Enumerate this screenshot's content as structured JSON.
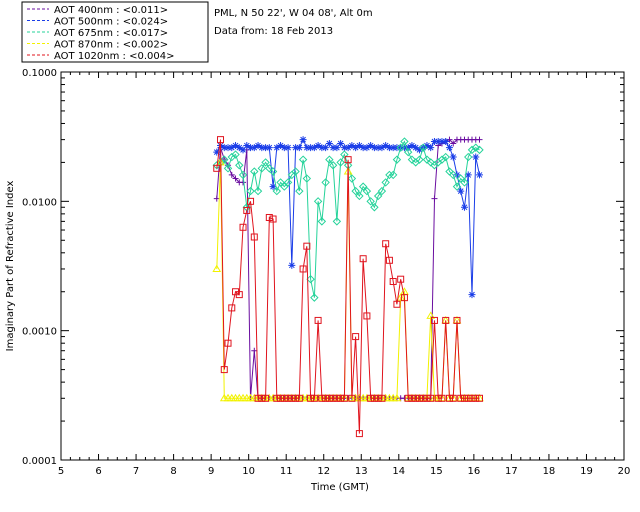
{
  "info": {
    "station": "PML, N 50 22', W 04 08', Alt 0m",
    "data_from": "Data from: 18 Feb 2013"
  },
  "legend": [
    {
      "label": "AOT  400nm : <0.011>",
      "color": "#6a0da0"
    },
    {
      "label": "AOT  500nm : <0.024>",
      "color": "#1a3de8"
    },
    {
      "label": "AOT  675nm : <0.017>",
      "color": "#25d39a"
    },
    {
      "label": "AOT  870nm : <0.002>",
      "color": "#f2f200"
    },
    {
      "label": "AOT 1020nm : <0.004>",
      "color": "#e0141e"
    }
  ],
  "chart_data": {
    "type": "line",
    "title": "",
    "xlabel": "Time (GMT)",
    "ylabel": "Imaginary Part of Refractive Index",
    "xlim": [
      5,
      20
    ],
    "ylim": [
      0.0001,
      0.1
    ],
    "yscale": "log",
    "xticks": [
      "5",
      "6",
      "7",
      "8",
      "9",
      "10",
      "11",
      "12",
      "13",
      "14",
      "15",
      "16",
      "17",
      "18",
      "19",
      "20"
    ],
    "yticks": [
      "0.1000",
      "0.0100",
      "0.0010",
      "0.0001"
    ],
    "grid": false,
    "series": [
      {
        "name": "AOT  400nm : <0.011>",
        "color": "#6a0da0",
        "marker": "plus",
        "x": [
          9.15,
          9.25,
          9.35,
          9.45,
          9.55,
          9.65,
          9.75,
          9.85,
          9.95,
          10.05,
          10.15,
          10.25,
          10.35,
          10.45,
          10.55,
          10.65,
          10.75,
          10.85,
          10.95,
          11.05,
          11.15,
          11.25,
          11.35,
          11.45,
          11.55,
          11.65,
          11.75,
          11.85,
          11.95,
          12.05,
          12.15,
          12.25,
          12.35,
          12.45,
          12.55,
          12.65,
          12.75,
          12.85,
          12.95,
          13.05,
          13.15,
          13.25,
          13.35,
          13.45,
          13.55,
          13.65,
          13.75,
          13.85,
          13.95,
          14.05,
          14.15,
          14.25,
          14.35,
          14.45,
          14.55,
          14.65,
          14.75,
          14.85,
          14.95,
          15.05,
          15.15,
          15.25,
          15.35,
          15.45,
          15.55,
          15.65,
          15.75,
          15.85,
          15.95,
          16.05,
          16.15
        ],
        "y": [
          0.0105,
          0.026,
          0.0212,
          0.019,
          0.016,
          0.015,
          0.014,
          0.014,
          0.025,
          0.0003,
          0.0007,
          0.0003,
          0.0003,
          0.0003,
          0.0003,
          0.0003,
          0.0003,
          0.0003,
          0.0003,
          0.0003,
          0.0003,
          0.0003,
          0.0003,
          0.0003,
          0.0003,
          0.0003,
          0.0003,
          0.0003,
          0.0003,
          0.0003,
          0.0003,
          0.0003,
          0.0003,
          0.0003,
          0.0003,
          0.0003,
          0.0003,
          0.0003,
          0.0003,
          0.0003,
          0.0003,
          0.0003,
          0.0003,
          0.0003,
          0.0003,
          0.0003,
          0.0003,
          0.0003,
          0.0003,
          0.0003,
          0.0003,
          0.0003,
          0.0003,
          0.0003,
          0.0003,
          0.0003,
          0.0003,
          0.0003,
          0.0105,
          0.027,
          0.028,
          0.029,
          0.03,
          0.028,
          0.03,
          0.03,
          0.03,
          0.03,
          0.03,
          0.03,
          0.03
        ]
      },
      {
        "name": "AOT  500nm : <0.024>",
        "color": "#1a3de8",
        "marker": "star",
        "x": [
          9.15,
          9.25,
          9.35,
          9.45,
          9.55,
          9.65,
          9.75,
          9.85,
          9.95,
          10.05,
          10.15,
          10.25,
          10.35,
          10.45,
          10.55,
          10.65,
          10.75,
          10.85,
          10.95,
          11.05,
          11.15,
          11.25,
          11.35,
          11.45,
          11.55,
          11.65,
          11.75,
          11.85,
          11.95,
          12.05,
          12.15,
          12.25,
          12.35,
          12.45,
          12.55,
          12.65,
          12.75,
          12.85,
          12.95,
          13.05,
          13.15,
          13.25,
          13.35,
          13.45,
          13.55,
          13.65,
          13.75,
          13.85,
          13.95,
          14.05,
          14.15,
          14.25,
          14.35,
          14.45,
          14.55,
          14.65,
          14.75,
          14.85,
          14.95,
          15.05,
          15.15,
          15.25,
          15.35,
          15.45,
          15.55,
          15.65,
          15.75,
          15.85,
          15.95,
          16.05,
          16.15
        ],
        "y": [
          0.024,
          0.027,
          0.026,
          0.026,
          0.026,
          0.027,
          0.026,
          0.025,
          0.027,
          0.026,
          0.026,
          0.027,
          0.026,
          0.026,
          0.026,
          0.013,
          0.026,
          0.027,
          0.026,
          0.026,
          0.0032,
          0.026,
          0.026,
          0.03,
          0.026,
          0.026,
          0.026,
          0.027,
          0.026,
          0.026,
          0.028,
          0.026,
          0.026,
          0.028,
          0.026,
          0.026,
          0.027,
          0.026,
          0.027,
          0.026,
          0.026,
          0.027,
          0.026,
          0.026,
          0.026,
          0.027,
          0.026,
          0.026,
          0.026,
          0.026,
          0.026,
          0.026,
          0.027,
          0.026,
          0.025,
          0.026,
          0.027,
          0.026,
          0.029,
          0.029,
          0.029,
          0.029,
          0.026,
          0.022,
          0.016,
          0.012,
          0.009,
          0.016,
          0.0019,
          0.022,
          0.016
        ]
      },
      {
        "name": "AOT  675nm : <0.017>",
        "color": "#25d39a",
        "marker": "diamond",
        "x": [
          9.15,
          9.25,
          9.35,
          9.45,
          9.55,
          9.65,
          9.75,
          9.85,
          9.95,
          10.05,
          10.15,
          10.25,
          10.35,
          10.45,
          10.55,
          10.65,
          10.75,
          10.85,
          10.95,
          11.05,
          11.15,
          11.25,
          11.35,
          11.45,
          11.55,
          11.65,
          11.75,
          11.85,
          11.95,
          12.05,
          12.15,
          12.25,
          12.35,
          12.45,
          12.55,
          12.65,
          12.75,
          12.85,
          12.95,
          13.05,
          13.15,
          13.25,
          13.35,
          13.45,
          13.55,
          13.65,
          13.75,
          13.85,
          13.95,
          14.05,
          14.15,
          14.25,
          14.35,
          14.45,
          14.55,
          14.65,
          14.75,
          14.85,
          14.95,
          15.05,
          15.15,
          15.25,
          15.35,
          15.45,
          15.55,
          15.65,
          15.75,
          15.85,
          15.95,
          16.05,
          16.15
        ],
        "y": [
          0.019,
          0.02,
          0.021,
          0.018,
          0.022,
          0.023,
          0.019,
          0.016,
          0.009,
          0.012,
          0.017,
          0.012,
          0.018,
          0.02,
          0.018,
          0.017,
          0.012,
          0.014,
          0.013,
          0.014,
          0.016,
          0.017,
          0.012,
          0.021,
          0.015,
          0.0025,
          0.0018,
          0.01,
          0.007,
          0.014,
          0.021,
          0.019,
          0.007,
          0.02,
          0.023,
          0.019,
          0.015,
          0.012,
          0.011,
          0.013,
          0.012,
          0.01,
          0.009,
          0.011,
          0.012,
          0.014,
          0.016,
          0.016,
          0.021,
          0.026,
          0.029,
          0.024,
          0.021,
          0.02,
          0.021,
          0.026,
          0.021,
          0.02,
          0.019,
          0.02,
          0.021,
          0.022,
          0.017,
          0.016,
          0.013,
          0.015,
          0.014,
          0.022,
          0.025,
          0.026,
          0.025
        ]
      },
      {
        "name": "AOT  870nm : <0.002>",
        "color": "#f2f200",
        "marker": "triangle",
        "x": [
          9.15,
          9.25,
          9.35,
          9.45,
          9.55,
          9.65,
          9.75,
          9.85,
          9.95,
          10.05,
          10.15,
          10.25,
          10.35,
          10.45,
          10.55,
          10.65,
          10.75,
          10.85,
          10.95,
          11.05,
          11.15,
          11.25,
          11.35,
          11.45,
          11.55,
          11.65,
          11.75,
          11.85,
          11.95,
          12.05,
          12.15,
          12.25,
          12.35,
          12.45,
          12.55,
          12.65,
          12.75,
          12.85,
          12.95,
          13.05,
          13.15,
          13.25,
          13.35,
          13.45,
          13.55,
          13.65,
          13.75,
          13.85,
          13.95,
          14.05,
          14.15,
          14.25,
          14.35,
          14.45,
          14.55,
          14.65,
          14.75,
          14.85,
          14.95,
          15.05,
          15.15,
          15.25,
          15.35,
          15.45,
          15.55,
          15.65,
          15.75,
          15.85,
          15.95,
          16.05,
          16.15
        ],
        "y": [
          0.003,
          0.02,
          0.0003,
          0.0003,
          0.0003,
          0.0003,
          0.0003,
          0.0003,
          0.0003,
          0.0003,
          0.0003,
          0.0003,
          0.0003,
          0.0003,
          0.0003,
          0.0003,
          0.0003,
          0.0003,
          0.0003,
          0.0003,
          0.0003,
          0.0003,
          0.0003,
          0.0003,
          0.0003,
          0.0003,
          0.0003,
          0.0003,
          0.0003,
          0.0003,
          0.0003,
          0.0003,
          0.0003,
          0.0003,
          0.0003,
          0.017,
          0.0003,
          0.0003,
          0.0003,
          0.0003,
          0.0003,
          0.0003,
          0.0003,
          0.0003,
          0.0003,
          0.0003,
          0.0003,
          0.0003,
          0.0003,
          0.0018,
          0.002,
          0.0003,
          0.0003,
          0.0003,
          0.0003,
          0.0003,
          0.0003,
          0.0013,
          0.0003,
          0.0003,
          0.0003,
          0.0012,
          0.0003,
          0.0003,
          0.0012,
          0.0003,
          0.0003,
          0.0003,
          0.0003,
          0.0003,
          0.0003
        ]
      },
      {
        "name": "AOT 1020nm : <0.004>",
        "color": "#e0141e",
        "marker": "square",
        "x": [
          9.15,
          9.25,
          9.35,
          9.45,
          9.55,
          9.65,
          9.75,
          9.85,
          9.95,
          10.05,
          10.15,
          10.25,
          10.35,
          10.45,
          10.55,
          10.65,
          10.75,
          10.85,
          10.95,
          11.05,
          11.15,
          11.25,
          11.35,
          11.45,
          11.55,
          11.65,
          11.75,
          11.85,
          11.95,
          12.05,
          12.15,
          12.25,
          12.35,
          12.45,
          12.55,
          12.65,
          12.75,
          12.85,
          12.95,
          13.05,
          13.15,
          13.25,
          13.35,
          13.45,
          13.55,
          13.65,
          13.75,
          13.85,
          13.95,
          14.05,
          14.15,
          14.25,
          14.35,
          14.45,
          14.55,
          14.65,
          14.75,
          14.85,
          14.95,
          15.05,
          15.15,
          15.25,
          15.35,
          15.45,
          15.55,
          15.65,
          15.75,
          15.85,
          15.95,
          16.05,
          16.15
        ],
        "y": [
          0.018,
          0.03,
          0.0005,
          0.0008,
          0.0015,
          0.002,
          0.0019,
          0.0063,
          0.0085,
          0.01,
          0.0053,
          0.0003,
          0.0003,
          0.0003,
          0.0075,
          0.0073,
          0.0003,
          0.0003,
          0.0003,
          0.0003,
          0.0003,
          0.0003,
          0.0003,
          0.003,
          0.0045,
          0.0003,
          0.0003,
          0.0012,
          0.0003,
          0.0003,
          0.0003,
          0.0003,
          0.0003,
          0.0003,
          0.0003,
          0.021,
          0.0003,
          0.0009,
          0.00016,
          0.0036,
          0.0013,
          0.0003,
          0.0003,
          0.0003,
          0.0003,
          0.0047,
          0.0035,
          0.0024,
          0.0016,
          0.0025,
          0.0018,
          0.0003,
          0.0003,
          0.0003,
          0.0003,
          0.0003,
          0.0003,
          0.0003,
          0.0012,
          0.0003,
          0.0003,
          0.0012,
          0.0003,
          0.0003,
          0.0012,
          0.0003,
          0.0003,
          0.0003,
          0.0003,
          0.0003,
          0.0003
        ]
      }
    ]
  }
}
